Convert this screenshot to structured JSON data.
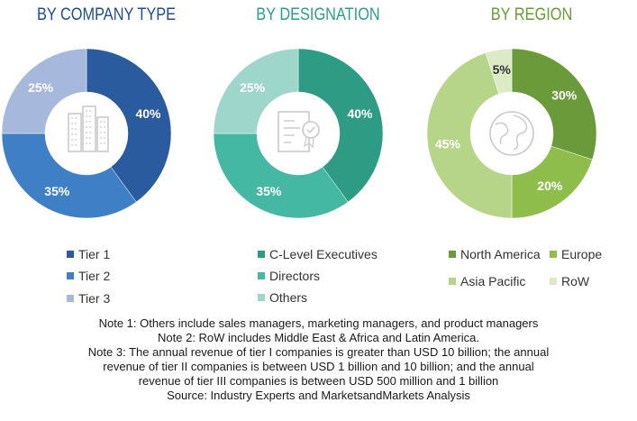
{
  "chart_data": [
    {
      "type": "pie",
      "variant": "donut",
      "title": "BY COMPANY TYPE",
      "title_color": "#1f4e8c",
      "center_icon": "buildings-icon",
      "categories": [
        "Tier 1",
        "Tier 2",
        "Tier 3"
      ],
      "values": [
        40,
        35,
        25
      ],
      "labels": [
        "40%",
        "35%",
        "25%"
      ],
      "colors": [
        "#2a5b9e",
        "#3f7fc6",
        "#a6b8dc"
      ],
      "label_colors": [
        "#ffffff",
        "#ffffff",
        "#ffffff"
      ]
    },
    {
      "type": "pie",
      "variant": "donut",
      "title": "BY DESIGNATION",
      "title_color": "#2a9d8f",
      "center_icon": "certificate-icon",
      "categories": [
        "C-Level Executives",
        "Directors",
        "Others"
      ],
      "values": [
        40,
        35,
        25
      ],
      "labels": [
        "40%",
        "35%",
        "25%"
      ],
      "colors": [
        "#2e9c84",
        "#45b8a3",
        "#9fd6cb"
      ],
      "label_colors": [
        "#ffffff",
        "#ffffff",
        "#ffffff"
      ]
    },
    {
      "type": "pie",
      "variant": "donut",
      "title": "BY REGION",
      "title_color": "#6b9a3a",
      "center_icon": "globe-icon",
      "categories": [
        "North America",
        "Europe",
        "Asia Pacific",
        "RoW"
      ],
      "values": [
        30,
        20,
        45,
        5
      ],
      "labels": [
        "30%",
        "20%",
        "45%",
        "5%"
      ],
      "colors": [
        "#6b9a3a",
        "#8fbd4c",
        "#b7d588",
        "#dcebc6"
      ],
      "label_colors": [
        "#ffffff",
        "#ffffff",
        "#ffffff",
        "#333333"
      ]
    }
  ],
  "notes": [
    "Note 1: Others include sales managers, marketing managers, and product managers",
    "Note 2: RoW includes Middle East & Africa and Latin America.",
    "Note 3: The annual revenue of tier I companies is greater than USD 10 billion; the annual",
    "revenue of tier II companies is between USD 1 billion and 10 billion; and the annual",
    "revenue of tier III companies is between USD 500 million and 1 billion",
    "Source: Industry Experts and MarketsandMarkets Analysis"
  ]
}
